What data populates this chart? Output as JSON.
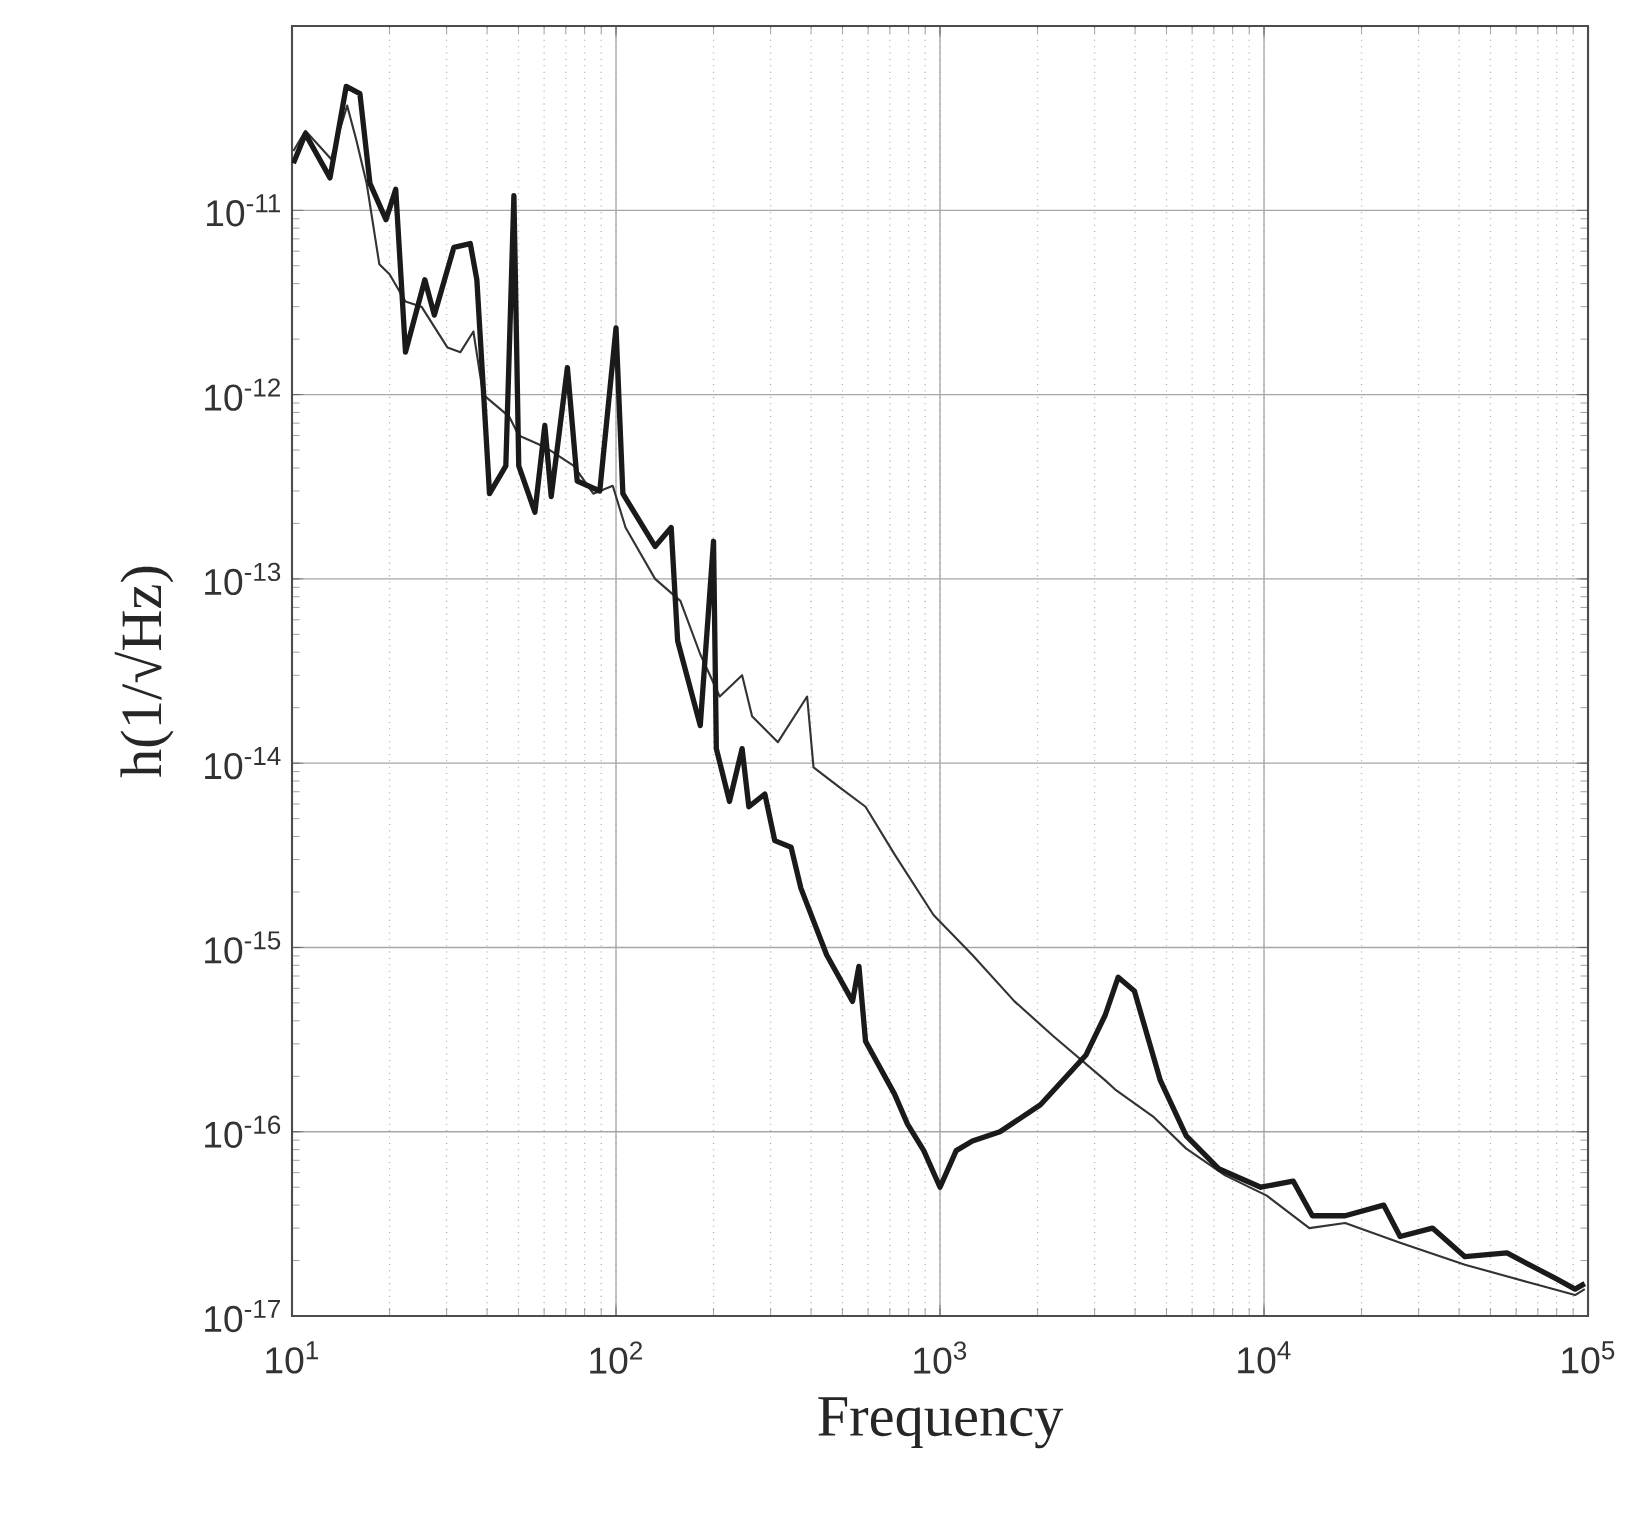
{
  "chart_data": {
    "type": "line",
    "xlabel": "Frequency",
    "ylabel": "h(1/√Hz)",
    "log": "xy",
    "grid": true,
    "xlim": [
      10,
      100000
    ],
    "ylim": [
      1e-17,
      1e-10
    ],
    "xticks": [
      {
        "value": 10,
        "label": "10$^{1}$"
      },
      {
        "value": 100,
        "label": "10$^{2}$"
      },
      {
        "value": 1000,
        "label": "10$^{3}$"
      },
      {
        "value": 10000,
        "label": "10$^{4}$"
      },
      {
        "value": 100000,
        "label": "10$^{5}$"
      }
    ],
    "yticks": [
      {
        "value": 1e-17,
        "label": "10$^{-17}$"
      },
      {
        "value": 1e-16,
        "label": "10$^{-16}$"
      },
      {
        "value": 1e-15,
        "label": "10$^{-15}$"
      },
      {
        "value": 1e-14,
        "label": "10$^{-14}$"
      },
      {
        "value": 1e-13,
        "label": "10$^{-13}$"
      },
      {
        "value": 1e-12,
        "label": "10$^{-12}$"
      },
      {
        "value": 1e-11,
        "label": "10$^{-11}$"
      }
    ],
    "series": [
      {
        "color": "#333333",
        "x": [
          10.1,
          11.0,
          13.2,
          14.8,
          15.8,
          17.0,
          18.6,
          20.0,
          22.4,
          25.1,
          30.2,
          33.1,
          36.3,
          38.9,
          46.8,
          50.1,
          60.3,
          74.1,
          85.1,
          97.7,
          107,
          132,
          158,
          182,
          209,
          245,
          263,
          316,
          389,
          407,
          490,
          589,
          724,
          955,
          1259,
          1698,
          2239,
          3236,
          3467,
          4571,
          5754,
          7586,
          10200,
          13800,
          17800,
          26300,
          41700,
          67600,
          91200,
          97700
        ],
        "values": [
          2.1e-11,
          2.7e-11,
          1.9e-11,
          3.7e-11,
          2.4e-11,
          1.4e-11,
          5.1e-12,
          4.5e-12,
          3.2e-12,
          3e-12,
          1.8e-12,
          1.7e-12,
          2.2e-12,
          1e-12,
          7.6e-13,
          6e-13,
          5.2e-13,
          4.1e-13,
          2.9e-13,
          3.2e-13,
          1.9e-13,
          1e-13,
          7.6e-14,
          3.9e-14,
          2.3e-14,
          3e-14,
          1.8e-14,
          1.3e-14,
          2.3e-14,
          9.5e-15,
          7.4e-15,
          5.8e-15,
          3.2e-15,
          1.5e-15,
          9.1e-16,
          5.1e-16,
          3.3e-16,
          1.9e-16,
          1.7e-16,
          1.2e-16,
          8.1e-17,
          5.8e-17,
          4.5e-17,
          3e-17,
          3.2e-17,
          2.5e-17,
          1.9e-17,
          1.5e-17,
          1.3e-17,
          1.4e-17
        ]
      },
      {
        "color": "#1a1a1a",
        "x": [
          10.1,
          11.0,
          13.1,
          14.7,
          16.2,
          17.4,
          19.5,
          20.9,
          22.4,
          25.7,
          27.5,
          31.6,
          35.5,
          37.2,
          40.7,
          45.7,
          48.4,
          50.1,
          56.2,
          60.3,
          63.1,
          70.8,
          75.9,
          89.1,
          100,
          105,
          132,
          148,
          155,
          182,
          200,
          204,
          224,
          245,
          257,
          288,
          309,
          347,
          372,
          447,
          537,
          562,
          589,
          724,
          794,
          891,
          1000,
          1122,
          1259,
          1531,
          2042,
          2818,
          3236,
          3548,
          3981,
          4786,
          5754,
          7244,
          9772,
          12300,
          14100,
          17800,
          23400,
          26300,
          33100,
          41700,
          56200,
          79400,
          91200,
          97700
        ],
        "values": [
          1.8e-11,
          2.6e-11,
          1.5e-11,
          4.7e-11,
          4.3e-11,
          1.4e-11,
          8.9e-12,
          1.3e-11,
          1.7e-12,
          4.2e-12,
          2.7e-12,
          6.3e-12,
          6.6e-12,
          4.2e-12,
          2.9e-13,
          4.1e-13,
          1.2e-11,
          4.1e-13,
          2.3e-13,
          6.8e-13,
          2.8e-13,
          1.4e-12,
          3.4e-13,
          3e-13,
          2.3e-12,
          2.9e-13,
          1.5e-13,
          1.9e-13,
          4.6e-14,
          1.6e-14,
          1.6e-13,
          1.2e-14,
          6.2e-15,
          1.2e-14,
          5.8e-15,
          6.8e-15,
          3.8e-15,
          3.5e-15,
          2.1e-15,
          9.1e-16,
          5.1e-16,
          7.9e-16,
          3.1e-16,
          1.6e-16,
          1.1e-16,
          7.9e-17,
          5e-17,
          7.9e-17,
          8.9e-17,
          1e-16,
          1.4e-16,
          2.6e-16,
          4.3e-16,
          6.9e-16,
          5.8e-16,
          1.9e-16,
          9.5e-17,
          6.3e-17,
          5e-17,
          5.4e-17,
          3.5e-17,
          3.5e-17,
          4e-17,
          2.7e-17,
          3e-17,
          2.1e-17,
          2.2e-17,
          1.6e-17,
          1.4e-17,
          1.5e-17
        ]
      }
    ]
  }
}
